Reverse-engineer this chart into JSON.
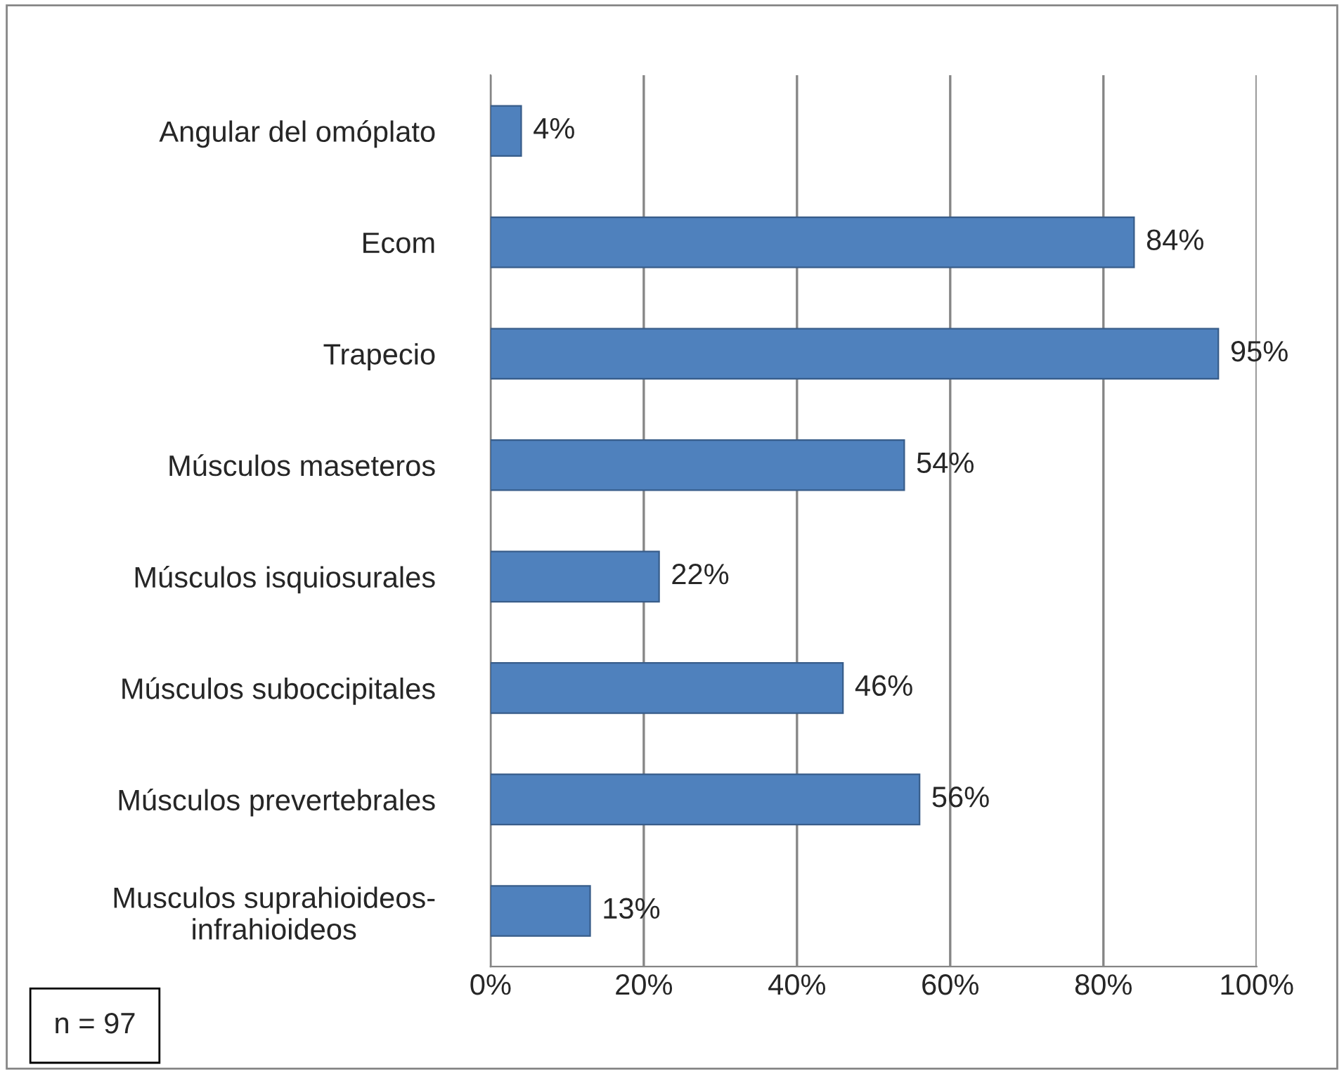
{
  "chart_data": {
    "type": "bar",
    "orientation": "horizontal",
    "categories": [
      "Angular del omóplato",
      "Ecom",
      "Trapecio",
      "Músculos maseteros",
      "Músculos isquiosurales",
      "Músculos suboccipitales",
      "Músculos prevertebrales",
      "Musculos suprahioideos-\ninfrahioideos"
    ],
    "values": [
      4,
      84,
      95,
      54,
      22,
      46,
      56,
      13
    ],
    "value_labels": [
      "4%",
      "84%",
      "95%",
      "54%",
      "22%",
      "46%",
      "56%",
      "13%"
    ],
    "color": "#4f81bd",
    "xlim": [
      0,
      100
    ],
    "xticks": [
      {
        "value": 0,
        "label": "0%"
      },
      {
        "value": 20,
        "label": "20%"
      },
      {
        "value": 40,
        "label": "40%"
      },
      {
        "value": 60,
        "label": "60%"
      },
      {
        "value": 80,
        "label": "80%"
      },
      {
        "value": 100,
        "label": "100%"
      }
    ],
    "grid": "x",
    "annotations": [
      "n = 97"
    ]
  }
}
